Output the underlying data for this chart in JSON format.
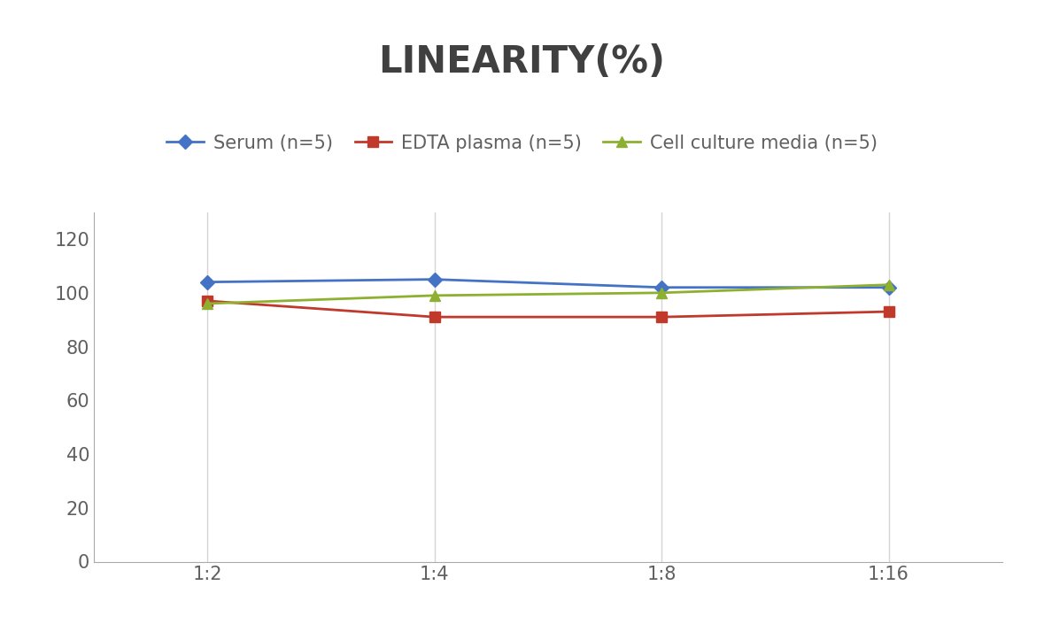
{
  "title": "LINEARITY(%)",
  "title_fontsize": 30,
  "title_fontweight": "bold",
  "title_color": "#404040",
  "x_labels": [
    "1:2",
    "1:4",
    "1:8",
    "1:16"
  ],
  "x_values": [
    0,
    1,
    2,
    3
  ],
  "series": [
    {
      "label": "Serum (n=5)",
      "values": [
        104,
        105,
        102,
        102
      ],
      "color": "#4472C4",
      "marker": "D",
      "markersize": 8,
      "linewidth": 2
    },
    {
      "label": "EDTA plasma (n=5)",
      "values": [
        97,
        91,
        91,
        93
      ],
      "color": "#C0392B",
      "marker": "s",
      "markersize": 8,
      "linewidth": 2
    },
    {
      "label": "Cell culture media (n=5)",
      "values": [
        96,
        99,
        100,
        103
      ],
      "color": "#8DB030",
      "marker": "^",
      "markersize": 8,
      "linewidth": 2
    }
  ],
  "ylim": [
    0,
    130
  ],
  "yticks": [
    0,
    20,
    40,
    60,
    80,
    100,
    120
  ],
  "grid_color": "#D5D5D5",
  "background_color": "#FFFFFF",
  "legend_fontsize": 15,
  "tick_fontsize": 15,
  "tick_color": "#606060"
}
